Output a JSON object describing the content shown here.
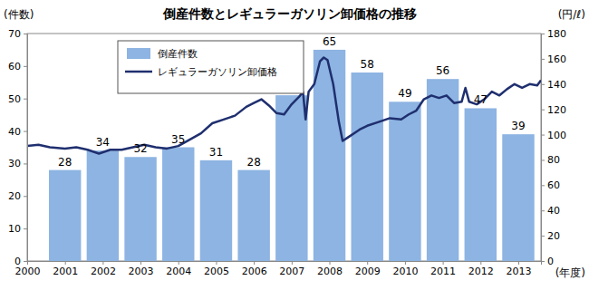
{
  "chart_data": {
    "type": "bar",
    "title": "倒産件数とレギュラーガソリン卸価格の推移",
    "xlabel": "(年度)",
    "ylabel": "(件数)",
    "y2label": "(円/ℓ)",
    "xlim": [
      2000,
      2013.6
    ],
    "xticks": [
      2000,
      2001,
      2002,
      2003,
      2004,
      2005,
      2006,
      2007,
      2008,
      2009,
      2010,
      2011,
      2012,
      2013
    ],
    "ylim": [
      0,
      70
    ],
    "yticks": [
      0,
      10,
      20,
      30,
      40,
      50,
      60,
      70
    ],
    "y2lim": [
      0,
      180
    ],
    "y2ticks": [
      0,
      20,
      40,
      60,
      80,
      100,
      120,
      140,
      160,
      180
    ],
    "legend": "upper left",
    "series": [
      {
        "name": "倒産件数",
        "type": "bar",
        "color": "#8db4e2",
        "data_labels": true,
        "x": [
          2001,
          2002,
          2003,
          2004,
          2005,
          2006,
          2007,
          2008,
          2009,
          2010,
          2011,
          2012,
          2013
        ],
        "values": [
          28,
          34,
          32,
          35,
          31,
          28,
          51,
          65,
          58,
          49,
          56,
          47,
          39
        ]
      },
      {
        "name": "レギュラーガソリン卸価格",
        "type": "line",
        "color": "#1f2f6f",
        "axis": "y2",
        "x": [
          2000.0,
          2000.3,
          2000.6,
          2001.0,
          2001.3,
          2001.6,
          2001.9,
          2002.2,
          2002.5,
          2002.8,
          2003.1,
          2003.4,
          2003.7,
          2004.0,
          2004.3,
          2004.6,
          2004.9,
          2005.2,
          2005.5,
          2005.8,
          2006.0,
          2006.2,
          2006.4,
          2006.6,
          2006.8,
          2007.0,
          2007.2,
          2007.3,
          2007.37,
          2007.45,
          2007.6,
          2007.75,
          2007.85,
          2007.95,
          2008.1,
          2008.25,
          2008.35,
          2008.5,
          2008.8,
          2009.0,
          2009.3,
          2009.6,
          2009.9,
          2010.1,
          2010.3,
          2010.5,
          2010.7,
          2010.9,
          2011.1,
          2011.3,
          2011.5,
          2011.6,
          2011.7,
          2011.9,
          2012.1,
          2012.3,
          2012.5,
          2012.7,
          2012.9,
          2013.1,
          2013.3,
          2013.5,
          2013.6
        ],
        "values": [
          91,
          92,
          90,
          89,
          90,
          88,
          85,
          88,
          88,
          90,
          92,
          90,
          89,
          91,
          96,
          101,
          109,
          112,
          115,
          122,
          125,
          128,
          123,
          117,
          116,
          124,
          130,
          134,
          112,
          134,
          140,
          158,
          161,
          159,
          140,
          110,
          95,
          98,
          104,
          107,
          110,
          113,
          112,
          116,
          119,
          128,
          131,
          129,
          131,
          125,
          126,
          137,
          126,
          124,
          128,
          134,
          131,
          136,
          140,
          137,
          140,
          139,
          143
        ]
      }
    ]
  }
}
